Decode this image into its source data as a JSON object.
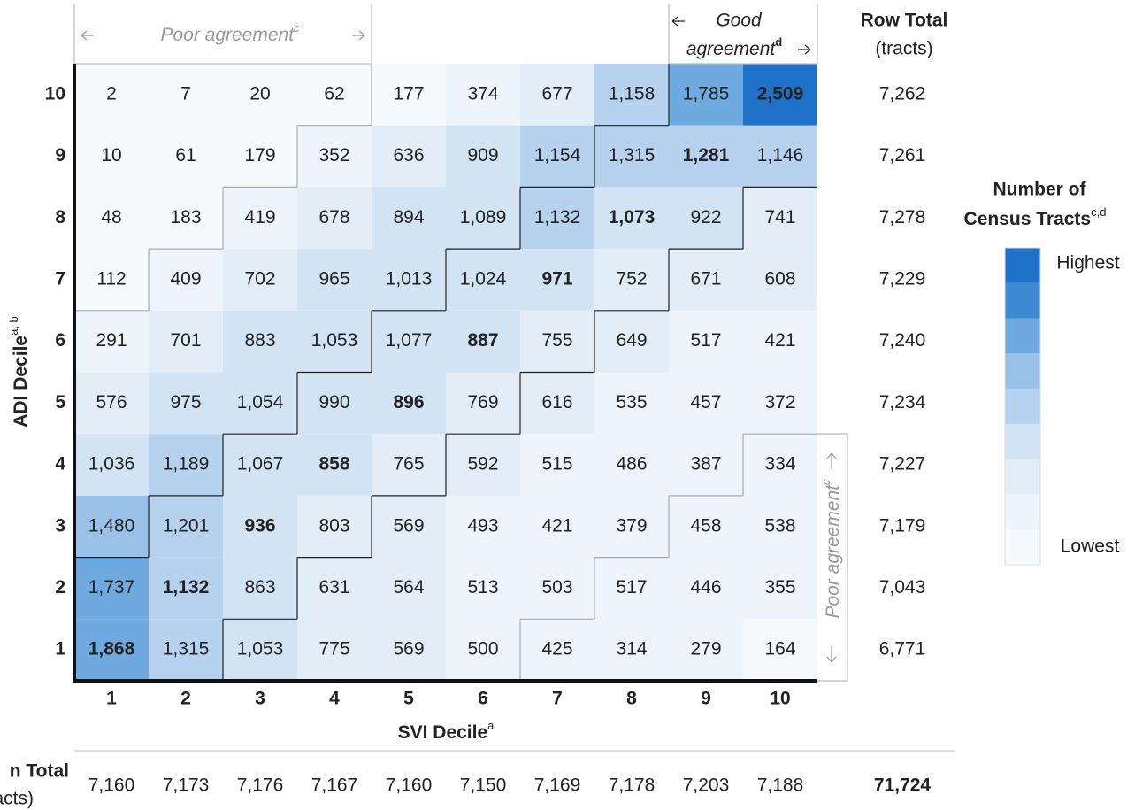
{
  "chart_data": {
    "type": "heatmap",
    "x_label": "SVI Decile",
    "x_label_sup": "a",
    "y_label": "ADI Decile",
    "y_label_sup": "a, b",
    "x_categories": [
      1,
      2,
      3,
      4,
      5,
      6,
      7,
      8,
      9,
      10
    ],
    "y_categories": [
      10,
      9,
      8,
      7,
      6,
      5,
      4,
      3,
      2,
      1
    ],
    "values": [
      [
        2,
        7,
        20,
        62,
        177,
        374,
        677,
        1158,
        1785,
        2509
      ],
      [
        10,
        61,
        179,
        352,
        636,
        909,
        1154,
        1315,
        1281,
        1146
      ],
      [
        48,
        183,
        419,
        678,
        894,
        1089,
        1132,
        1073,
        922,
        741
      ],
      [
        112,
        409,
        702,
        965,
        1013,
        1024,
        971,
        752,
        671,
        608
      ],
      [
        291,
        701,
        883,
        1053,
        1077,
        887,
        755,
        649,
        517,
        421
      ],
      [
        576,
        975,
        1054,
        990,
        896,
        769,
        616,
        535,
        457,
        372
      ],
      [
        1036,
        1189,
        1067,
        858,
        765,
        592,
        515,
        486,
        387,
        334
      ],
      [
        1480,
        1201,
        936,
        803,
        569,
        493,
        421,
        379,
        458,
        538
      ],
      [
        1737,
        1132,
        863,
        631,
        564,
        513,
        503,
        517,
        446,
        355
      ],
      [
        1868,
        1315,
        1053,
        775,
        569,
        500,
        425,
        314,
        279,
        164
      ]
    ],
    "value_labels": [
      [
        "2",
        "7",
        "20",
        "62",
        "177",
        "374",
        "677",
        "1,158",
        "1,785",
        "2,509"
      ],
      [
        "10",
        "61",
        "179",
        "352",
        "636",
        "909",
        "1,154",
        "1,315",
        "1,281",
        "1,146"
      ],
      [
        "48",
        "183",
        "419",
        "678",
        "894",
        "1,089",
        "1,132",
        "1,073",
        "922",
        "741"
      ],
      [
        "112",
        "409",
        "702",
        "965",
        "1,013",
        "1,024",
        "971",
        "752",
        "671",
        "608"
      ],
      [
        "291",
        "701",
        "883",
        "1,053",
        "1,077",
        "887",
        "755",
        "649",
        "517",
        "421"
      ],
      [
        "576",
        "975",
        "1,054",
        "990",
        "896",
        "769",
        "616",
        "535",
        "457",
        "372"
      ],
      [
        "1,036",
        "1,189",
        "1,067",
        "858",
        "765",
        "592",
        "515",
        "486",
        "387",
        "334"
      ],
      [
        "1,480",
        "1,201",
        "936",
        "803",
        "569",
        "493",
        "421",
        "379",
        "458",
        "538"
      ],
      [
        "1,737",
        "1,132",
        "863",
        "631",
        "564",
        "513",
        "503",
        "517",
        "446",
        "355"
      ],
      [
        "1,868",
        "1,315",
        "1,053",
        "775",
        "569",
        "500",
        "425",
        "314",
        "279",
        "164"
      ]
    ],
    "row_total_title": "Row Total",
    "row_total_unit": "(tracts)",
    "row_totals": [
      7262,
      7261,
      7278,
      7229,
      7240,
      7234,
      7227,
      7179,
      7043,
      6771
    ],
    "row_total_labels": [
      "7,262",
      "7,261",
      "7,278",
      "7,229",
      "7,240",
      "7,234",
      "7,227",
      "7,179",
      "7,043",
      "6,771"
    ],
    "column_total_title": "n Total",
    "column_total_unit": "acts)",
    "column_totals": [
      7160,
      7173,
      7176,
      7167,
      7160,
      7150,
      7169,
      7178,
      7203,
      7188
    ],
    "column_total_labels": [
      "7,160",
      "7,173",
      "7,176",
      "7,167",
      "7,160",
      "7,150",
      "7,169",
      "7,178",
      "7,203",
      "7,188"
    ],
    "grand_total": 71724,
    "grand_total_label": "71,724",
    "legend_title_1": "Number of",
    "legend_title_2": "Census Tracts",
    "legend_title_sup": "c,d",
    "legend_high": "Highest",
    "legend_low": "Lowest",
    "colorscale": [
      "#f7fafd",
      "#eef4fb",
      "#e3edf8",
      "#d2e3f4",
      "#b6d2ee",
      "#9ac2e8",
      "#6eaadf",
      "#3d8ad3",
      "#1e72c7"
    ],
    "annotations": {
      "poor_top": "Poor agreement",
      "poor_top_sup": "c",
      "good_1": "Good",
      "good_2": "agreement",
      "good_sup": "d",
      "poor_right": "Poor agreement",
      "poor_right_sup": "c"
    }
  }
}
